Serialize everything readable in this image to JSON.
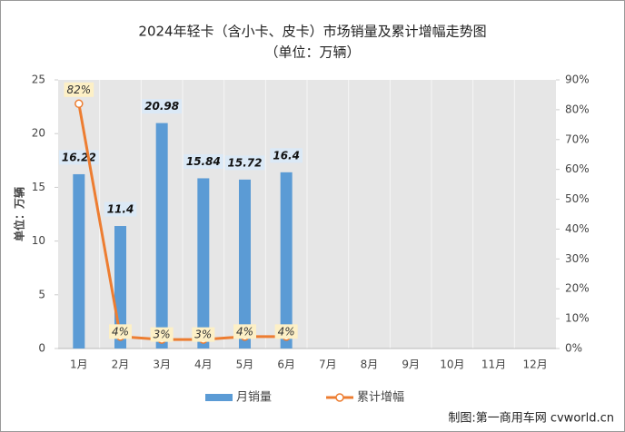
{
  "chart_data": {
    "type": "bar",
    "title": "2024年轻卡（含小卡、皮卡）市场销量及累计增幅走势图",
    "subtitle": "（单位：万辆）",
    "y_label": "单位：万辆",
    "footer": "制图:第一商用车网 cvworld.cn",
    "categories": [
      "1月",
      "2月",
      "3月",
      "4月",
      "5月",
      "6月",
      "7月",
      "8月",
      "9月",
      "10月",
      "11月",
      "12月"
    ],
    "series": [
      {
        "name": "月销量",
        "type": "bar",
        "color": "#5b9bd5",
        "values": [
          16.22,
          11.4,
          20.98,
          15.84,
          15.72,
          16.4,
          null,
          null,
          null,
          null,
          null,
          null
        ]
      },
      {
        "name": "累计增幅",
        "type": "line",
        "axis": "y2",
        "color": "#ed7d31",
        "values": [
          82,
          4,
          3,
          3,
          4,
          4,
          null,
          null,
          null,
          null,
          null,
          null
        ],
        "value_labels": [
          "82%",
          "4%",
          "3%",
          "3%",
          "4%",
          "4%",
          null,
          null,
          null,
          null,
          null,
          null
        ]
      }
    ],
    "ylim": [
      0,
      25
    ],
    "yticks": [
      0,
      5,
      10,
      15,
      20,
      25
    ],
    "y2lim": [
      0,
      90
    ],
    "y2ticks": [
      {
        "value": 0,
        "label": "0%"
      },
      {
        "value": 10,
        "label": "10%"
      },
      {
        "value": 20,
        "label": "20%"
      },
      {
        "value": 30,
        "label": "30%"
      },
      {
        "value": 40,
        "label": "40%"
      },
      {
        "value": 50,
        "label": "50%"
      },
      {
        "value": 60,
        "label": "60%"
      },
      {
        "value": 70,
        "label": "70%"
      },
      {
        "value": 80,
        "label": "80%"
      },
      {
        "value": 90,
        "label": "90%"
      }
    ]
  }
}
